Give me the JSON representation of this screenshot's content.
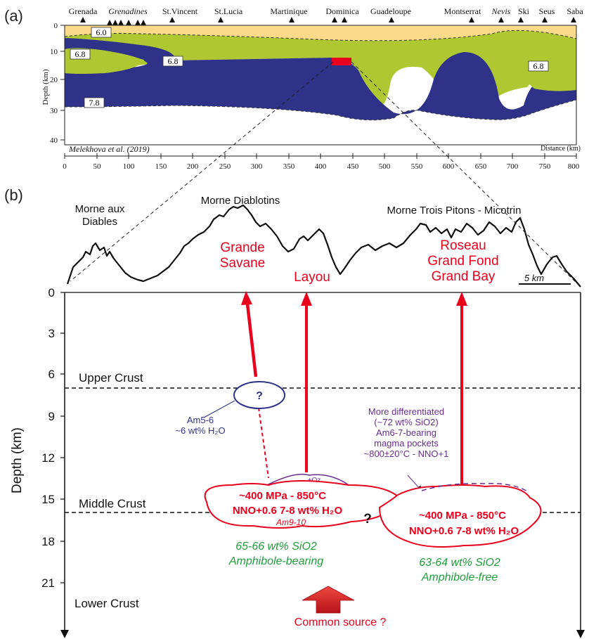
{
  "panel_a": {
    "label": "(a)",
    "islands": [
      "Grenada",
      "Grenadines",
      "St.Vincent",
      "St.Lucia",
      "Martinique",
      "Dominica",
      "Guadeloupe",
      "Montserrat",
      "Nevis",
      "Ski",
      "Seus",
      "Saba"
    ],
    "depth_ticks": [
      "0",
      "10",
      "20",
      "30",
      "40"
    ],
    "distance_ticks": [
      "0",
      "50",
      "100",
      "150",
      "200",
      "250",
      "300",
      "350",
      "400",
      "450",
      "500",
      "550",
      "600",
      "650",
      "700",
      "750",
      "800"
    ],
    "ylabel": "Depth (km)",
    "xlabel": "Distance (km)",
    "citation": "Melekhova et al. (2019)",
    "velocity_labels": [
      "6.0",
      "6.8",
      "6.8",
      "6.8",
      "7.8"
    ],
    "colors": {
      "upper": "#FDD98A",
      "middle": "#AFC832",
      "lower": "#2E3389",
      "marker": "#E8001C"
    }
  },
  "panel_b": {
    "label": "(b)",
    "peaks": {
      "left": "Morne aux\nDiables",
      "center": "Morne Diablotins",
      "right": "Morne Trois Pitons - Micotrin"
    },
    "scale_bar": "5 km",
    "eruptions": {
      "grande_savane": "Grande\nSavane",
      "layou": "Layou",
      "roseau": "Roseau\nGrand Fond\nGrand Bay"
    },
    "depth_ticks": [
      "0",
      "3",
      "6",
      "9",
      "12",
      "15",
      "18",
      "21"
    ],
    "ylabel": "Depth (km)",
    "crust": {
      "upper": "Upper Crust",
      "middle": "Middle Crust",
      "lower": "Lower Crust"
    },
    "shallow_reservoir": {
      "mark": "?",
      "note": "Am5-6\n~6 wt% H₂O"
    },
    "differentiated_note": "More differentiated\n(~72 wt% SiO2)\nAm6-7-bearing\nmagma pockets\n~800±20°C - NNO+1",
    "qz_label": "+Qz",
    "left_reservoir": {
      "line1": "~400 MPa - 850°C",
      "line2": "NNO+0.6    7-8 wt% H₂O",
      "am": "Am9-10"
    },
    "right_reservoir": {
      "line1": "~400 MPa - 850°C",
      "line2": "NNO+0.6    7-8 wt% H₂O"
    },
    "middle_question": "?",
    "left_chem": {
      "line1": "65-66 wt% SiO2",
      "line2": "Amphibole-bearing"
    },
    "right_chem": {
      "line1": "63-64 wt% SiO2",
      "line2": "Amphibole-free"
    },
    "common_source": "Common source ?",
    "colors": {
      "red": "#E8001C",
      "purple": "#6B2C91",
      "navy": "#2E3389",
      "green": "#1E9E3A"
    }
  }
}
